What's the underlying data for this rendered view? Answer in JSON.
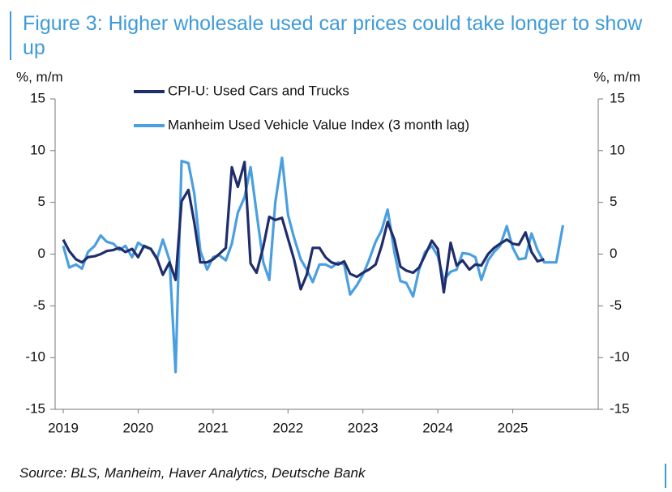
{
  "chart_data": {
    "type": "line",
    "title": "Figure 3: Higher wholesale used car prices could take longer to show up",
    "ylabel": "%, m/m",
    "y2label": "%, m/m",
    "source": "Source: BLS, Manheim, Haver Analytics, Deutsche Bank",
    "xlim": [
      2019,
      2026.0
    ],
    "xticks": [
      2019,
      2020,
      2021,
      2022,
      2023,
      2024,
      2025
    ],
    "ylim": [
      -15,
      15
    ],
    "yticks": [
      -15,
      -10,
      -5,
      0,
      5,
      10,
      15
    ],
    "y2lim": [
      -15,
      15
    ],
    "y2ticks": [
      -15,
      -10,
      -5,
      0,
      5,
      10,
      15
    ],
    "legend": "upper left",
    "grid": false,
    "series": [
      {
        "name": "CPI-U: Used Cars and Trucks",
        "color": "#1f2d6b",
        "x": [
          2019,
          2019.08,
          2019.17,
          2019.25,
          2019.33,
          2019.42,
          2019.5,
          2019.58,
          2019.67,
          2019.75,
          2019.83,
          2019.92,
          2020,
          2020.08,
          2020.17,
          2020.25,
          2020.33,
          2020.42,
          2020.5,
          2020.58,
          2020.67,
          2020.75,
          2020.83,
          2020.92,
          2021,
          2021.08,
          2021.17,
          2021.25,
          2021.33,
          2021.42,
          2021.5,
          2021.58,
          2021.67,
          2021.75,
          2021.83,
          2021.92,
          2022,
          2022.08,
          2022.17,
          2022.25,
          2022.33,
          2022.42,
          2022.5,
          2022.58,
          2022.67,
          2022.75,
          2022.83,
          2022.92,
          2023,
          2023.08,
          2023.17,
          2023.25,
          2023.33,
          2023.42,
          2023.5,
          2023.58,
          2023.67,
          2023.75,
          2023.83,
          2023.92,
          2024,
          2024.08,
          2024.17,
          2024.25,
          2024.33,
          2024.42,
          2024.5,
          2024.58,
          2024.67,
          2024.75,
          2024.83,
          2024.92,
          2025,
          2025.08,
          2025.17,
          2025.25,
          2025.33,
          2025.42
        ],
        "values": [
          1.4,
          0.3,
          -0.5,
          -0.8,
          -0.3,
          -0.2,
          0.0,
          0.3,
          0.4,
          0.6,
          0.2,
          0.5,
          -0.3,
          0.8,
          0.5,
          -0.4,
          -2.0,
          -0.8,
          -2.5,
          5.1,
          6.2,
          3.0,
          -0.8,
          -0.8,
          -0.5,
          0.0,
          0.6,
          8.4,
          6.5,
          8.9,
          -0.9,
          -1.8,
          0.7,
          3.6,
          3.3,
          3.5,
          1.5,
          -0.5,
          -3.4,
          -2.0,
          0.6,
          0.6,
          -0.3,
          -0.8,
          -1.0,
          -0.7,
          -1.9,
          -2.2,
          -1.8,
          -1.5,
          -1.0,
          0.8,
          3.1,
          1.4,
          -1.2,
          -1.6,
          -1.8,
          -1.3,
          -0.1,
          1.3,
          0.5,
          -3.7,
          1.1,
          -1.1,
          -0.6,
          -1.5,
          -1.0,
          -1.1,
          0.0,
          0.6,
          1.0,
          1.4,
          1.0,
          0.9,
          2.1,
          0.2,
          -0.7,
          -0.5
        ]
      },
      {
        "name": "Manheim Used Vehicle Value Index (3 month lag)",
        "color": "#4a9fe0",
        "x": [
          2019,
          2019.08,
          2019.17,
          2019.25,
          2019.33,
          2019.42,
          2019.5,
          2019.58,
          2019.67,
          2019.75,
          2019.83,
          2019.92,
          2020,
          2020.08,
          2020.17,
          2020.25,
          2020.33,
          2020.42,
          2020.5,
          2020.58,
          2020.67,
          2020.75,
          2020.83,
          2020.92,
          2021,
          2021.08,
          2021.17,
          2021.25,
          2021.33,
          2021.42,
          2021.5,
          2021.58,
          2021.67,
          2021.75,
          2021.83,
          2021.92,
          2022,
          2022.08,
          2022.17,
          2022.25,
          2022.33,
          2022.42,
          2022.5,
          2022.58,
          2022.67,
          2022.75,
          2022.83,
          2022.92,
          2023,
          2023.08,
          2023.17,
          2023.25,
          2023.33,
          2023.42,
          2023.5,
          2023.58,
          2023.67,
          2023.75,
          2023.83,
          2023.92,
          2024,
          2024.08,
          2024.17,
          2024.25,
          2024.33,
          2024.42,
          2024.5,
          2024.58,
          2024.67,
          2024.75,
          2024.83,
          2024.92,
          2025,
          2025.08,
          2025.17,
          2025.25,
          2025.33,
          2025.42,
          2025.5,
          2025.58,
          2025.67
        ],
        "values": [
          0.8,
          -1.3,
          -1.0,
          -1.4,
          0.2,
          0.8,
          1.8,
          1.2,
          1.0,
          0.4,
          0.8,
          -0.3,
          1.1,
          0.7,
          0.5,
          -0.5,
          1.4,
          -0.6,
          -11.4,
          9.0,
          8.8,
          5.8,
          0.3,
          -1.5,
          -0.3,
          -0.1,
          -0.6,
          1.0,
          4.0,
          5.5,
          8.4,
          4.0,
          -0.8,
          -2.5,
          5.0,
          9.3,
          3.8,
          1.6,
          -0.5,
          -1.5,
          -2.7,
          -1.0,
          -1.0,
          -1.3,
          -0.8,
          -1.0,
          -3.9,
          -3.0,
          -2.0,
          -0.6,
          1.2,
          2.3,
          4.3,
          0.2,
          -2.6,
          -2.8,
          -4.1,
          -1.5,
          0.2,
          0.8,
          -0.2,
          -2.5,
          -1.7,
          -1.5,
          0.1,
          0.0,
          -0.3,
          -2.5,
          -0.6,
          0.2,
          0.8,
          2.7,
          0.6,
          -0.5,
          -0.4,
          2.0,
          0.4,
          -0.8,
          -0.8,
          -0.8,
          2.8
        ]
      }
    ]
  }
}
